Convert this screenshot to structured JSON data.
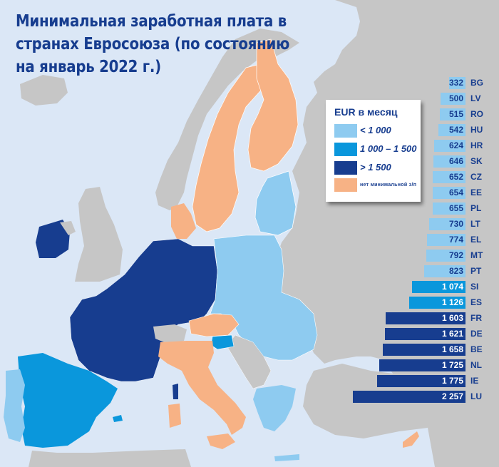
{
  "title": {
    "lines": [
      "Минимальная заработная плата в",
      "странах Евросоюза (по состоянию",
      "на январь 2022 г.)"
    ]
  },
  "legend": {
    "header": "EUR в месяц",
    "items": [
      {
        "label": "< 1 000",
        "color": "#8ecbf0"
      },
      {
        "label": "1 000 – 1 500",
        "color": "#0a97dc"
      },
      {
        "label": "> 1 500",
        "color": "#173d8f"
      },
      {
        "label": "нет минимальной з/п",
        "color": "#f7b285"
      }
    ]
  },
  "colors": {
    "sea": "#dbe7f6",
    "non_eu_land": "#c6c6c6",
    "low": "#8ecbf0",
    "mid": "#0a97dc",
    "high": "#173d8f",
    "none": "#f7b285",
    "text": "#173d8f"
  },
  "bars": [
    {
      "code": "BG",
      "display": "332",
      "value": 332,
      "tier": "low"
    },
    {
      "code": "LV",
      "display": "500",
      "value": 500,
      "tier": "low"
    },
    {
      "code": "RO",
      "display": "515",
      "value": 515,
      "tier": "low"
    },
    {
      "code": "HU",
      "display": "542",
      "value": 542,
      "tier": "low"
    },
    {
      "code": "HR",
      "display": "624",
      "value": 624,
      "tier": "low"
    },
    {
      "code": "SK",
      "display": "646",
      "value": 646,
      "tier": "low"
    },
    {
      "code": "CZ",
      "display": "652",
      "value": 652,
      "tier": "low"
    },
    {
      "code": "EE",
      "display": "654",
      "value": 654,
      "tier": "low"
    },
    {
      "code": "PL",
      "display": "655",
      "value": 655,
      "tier": "low"
    },
    {
      "code": "LT",
      "display": "730",
      "value": 730,
      "tier": "low"
    },
    {
      "code": "EL",
      "display": "774",
      "value": 774,
      "tier": "low"
    },
    {
      "code": "MT",
      "display": "792",
      "value": 792,
      "tier": "low"
    },
    {
      "code": "PT",
      "display": "823",
      "value": 823,
      "tier": "low"
    },
    {
      "code": "SI",
      "display": "1 074",
      "value": 1074,
      "tier": "mid"
    },
    {
      "code": "ES",
      "display": "1 126",
      "value": 1126,
      "tier": "mid"
    },
    {
      "code": "FR",
      "display": "1 603",
      "value": 1603,
      "tier": "high"
    },
    {
      "code": "DE",
      "display": "1 621",
      "value": 1621,
      "tier": "high"
    },
    {
      "code": "BE",
      "display": "1 658",
      "value": 1658,
      "tier": "high"
    },
    {
      "code": "NL",
      "display": "1 725",
      "value": 1725,
      "tier": "high"
    },
    {
      "code": "IE",
      "display": "1 775",
      "value": 1775,
      "tier": "high"
    },
    {
      "code": "LU",
      "display": "2 257",
      "value": 2257,
      "tier": "high"
    }
  ],
  "map_regions": {
    "no_minimum_wage": [
      "SE",
      "FI",
      "DK",
      "AT",
      "IT",
      "CY"
    ],
    "low": [
      "BG",
      "LV",
      "RO",
      "HU",
      "HR",
      "SK",
      "CZ",
      "EE",
      "PL",
      "LT",
      "EL",
      "MT",
      "PT"
    ],
    "mid": [
      "SI",
      "ES"
    ],
    "high": [
      "FR",
      "DE",
      "BE",
      "NL",
      "IE",
      "LU"
    ]
  },
  "chart_data": {
    "type": "bar",
    "orientation": "horizontal",
    "title": "Минимальная заработная плата в странах Евросоюза (по состоянию на январь 2022 г.)",
    "unit": "EUR в месяц",
    "categories": [
      "BG",
      "LV",
      "RO",
      "HU",
      "HR",
      "SK",
      "CZ",
      "EE",
      "PL",
      "LT",
      "EL",
      "MT",
      "PT",
      "SI",
      "ES",
      "FR",
      "DE",
      "BE",
      "NL",
      "IE",
      "LU"
    ],
    "values": [
      332,
      500,
      515,
      542,
      624,
      646,
      652,
      654,
      655,
      730,
      774,
      792,
      823,
      1074,
      1126,
      1603,
      1621,
      1658,
      1725,
      1775,
      2257
    ],
    "legend": [
      {
        "label": "< 1 000",
        "color": "#8ecbf0"
      },
      {
        "label": "1 000 – 1 500",
        "color": "#0a97dc"
      },
      {
        "label": "> 1 500",
        "color": "#173d8f"
      },
      {
        "label": "нет минимальной з/п",
        "color": "#f7b285"
      }
    ],
    "countries_without_minimum_wage": [
      "SE",
      "FI",
      "DK",
      "AT",
      "IT",
      "CY"
    ],
    "xlabel": "",
    "ylabel": "",
    "grid": false,
    "legend_position": "upper right (over map)"
  }
}
